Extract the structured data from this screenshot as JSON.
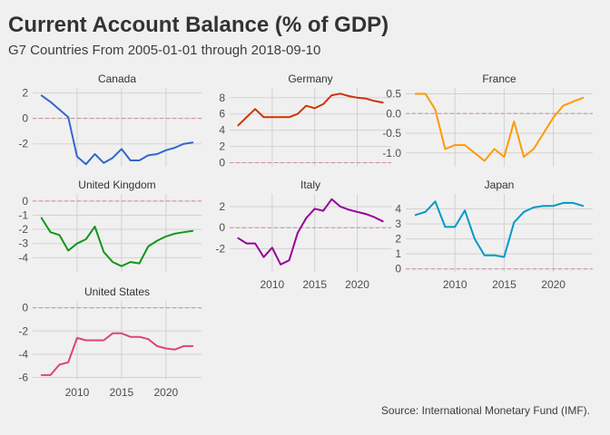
{
  "title": "Current Account Balance (% of GDP)",
  "subtitle": "G7 Countries From 2005-01-01 through 2018-09-10",
  "caption": "Source: International Monetary Fund (IMF).",
  "chart_data": {
    "type": "line",
    "layout": "small-multiples",
    "x_range": [
      2005,
      2024
    ],
    "x_ticks": [
      2010,
      2015,
      2020
    ],
    "reference_line": 0,
    "panels": [
      {
        "name": "Canada",
        "color": "#3366cc",
        "ylim": [
          -3.8,
          2.4
        ],
        "yticks": [
          2,
          0,
          -2
        ],
        "x": [
          2006,
          2007,
          2008,
          2009,
          2010,
          2011,
          2012,
          2013,
          2014,
          2015,
          2016,
          2017,
          2018,
          2019,
          2020,
          2021,
          2022,
          2023
        ],
        "values": [
          1.8,
          1.3,
          0.7,
          0.1,
          -3.0,
          -3.6,
          -2.8,
          -3.5,
          -3.1,
          -2.4,
          -3.3,
          -3.3,
          -2.9,
          -2.8,
          -2.5,
          -2.3,
          -2.0,
          -1.9
        ]
      },
      {
        "name": "Germany",
        "color": "#cc3300",
        "ylim": [
          -0.5,
          9.2
        ],
        "yticks": [
          8,
          6,
          4,
          2,
          0
        ],
        "x": [
          2006,
          2007,
          2008,
          2009,
          2010,
          2011,
          2012,
          2013,
          2014,
          2015,
          2016,
          2017,
          2018,
          2019,
          2020,
          2021,
          2022,
          2023
        ],
        "values": [
          4.6,
          5.6,
          6.6,
          5.6,
          5.6,
          5.6,
          5.6,
          6.0,
          7.0,
          6.7,
          7.2,
          8.3,
          8.5,
          8.2,
          8.0,
          7.9,
          7.6,
          7.4
        ]
      },
      {
        "name": "France",
        "color": "#ff9900",
        "ylim": [
          -1.35,
          0.65
        ],
        "yticks": [
          0.5,
          0.0,
          -0.5,
          -1.0
        ],
        "x": [
          2006,
          2007,
          2008,
          2009,
          2010,
          2011,
          2012,
          2013,
          2014,
          2015,
          2016,
          2017,
          2018,
          2019,
          2020,
          2021,
          2022,
          2023
        ],
        "values": [
          0.5,
          0.5,
          0.1,
          -0.9,
          -0.8,
          -0.8,
          -1.0,
          -1.2,
          -0.9,
          -1.1,
          -0.2,
          -1.1,
          -0.9,
          -0.5,
          -0.1,
          0.2,
          0.3,
          0.4
        ]
      },
      {
        "name": "United Kingdom",
        "color": "#109618",
        "ylim": [
          -5.0,
          0.5
        ],
        "yticks": [
          0,
          -1,
          -2,
          -3,
          -4
        ],
        "x": [
          2006,
          2007,
          2008,
          2009,
          2010,
          2011,
          2012,
          2013,
          2014,
          2015,
          2016,
          2017,
          2018,
          2019,
          2020,
          2021,
          2022,
          2023
        ],
        "values": [
          -1.2,
          -2.2,
          -2.4,
          -3.5,
          -3.0,
          -2.7,
          -1.8,
          -3.6,
          -4.3,
          -4.6,
          -4.3,
          -4.4,
          -3.2,
          -2.8,
          -2.5,
          -2.3,
          -2.2,
          -2.1
        ]
      },
      {
        "name": "Italy",
        "color": "#990099",
        "ylim": [
          -4.2,
          3.2
        ],
        "yticks": [
          2,
          0,
          -2
        ],
        "x": [
          2006,
          2007,
          2008,
          2009,
          2010,
          2011,
          2012,
          2013,
          2014,
          2015,
          2016,
          2017,
          2018,
          2019,
          2020,
          2021,
          2022,
          2023
        ],
        "values": [
          -1.0,
          -1.5,
          -1.5,
          -2.8,
          -1.9,
          -3.5,
          -3.1,
          -0.5,
          0.9,
          1.8,
          1.6,
          2.7,
          2.0,
          1.7,
          1.5,
          1.3,
          1.0,
          0.6
        ]
      },
      {
        "name": "Japan",
        "color": "#0099c6",
        "ylim": [
          -0.2,
          5.0
        ],
        "yticks": [
          4,
          3,
          2,
          1,
          0
        ],
        "x": [
          2006,
          2007,
          2008,
          2009,
          2010,
          2011,
          2012,
          2013,
          2014,
          2015,
          2016,
          2017,
          2018,
          2019,
          2020,
          2021,
          2022,
          2023
        ],
        "values": [
          3.6,
          3.8,
          4.5,
          2.8,
          2.8,
          3.9,
          2.0,
          0.9,
          0.9,
          0.8,
          3.1,
          3.8,
          4.1,
          4.2,
          4.2,
          4.4,
          4.4,
          4.2
        ]
      },
      {
        "name": "United States",
        "color": "#dd4477",
        "ylim": [
          -6.2,
          0.6
        ],
        "yticks": [
          0,
          -2,
          -4,
          -6
        ],
        "x": [
          2006,
          2007,
          2008,
          2009,
          2010,
          2011,
          2012,
          2013,
          2014,
          2015,
          2016,
          2017,
          2018,
          2019,
          2020,
          2021,
          2022,
          2023
        ],
        "values": [
          -5.8,
          -5.8,
          -4.9,
          -4.7,
          -2.6,
          -2.8,
          -2.8,
          -2.8,
          -2.2,
          -2.2,
          -2.5,
          -2.5,
          -2.7,
          -3.3,
          -3.5,
          -3.6,
          -3.3,
          -3.3
        ]
      }
    ]
  }
}
